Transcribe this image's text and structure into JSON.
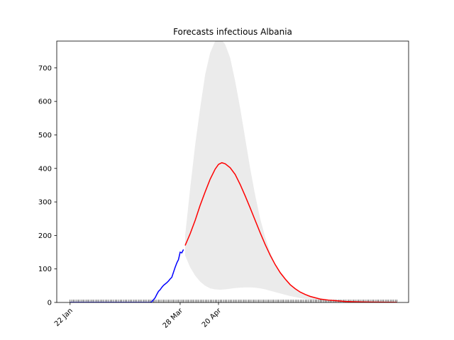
{
  "chart_data": {
    "type": "line",
    "title": "Forecasts infectious Albania",
    "xlabel": "",
    "ylabel": "",
    "ylim": [
      0,
      780
    ],
    "yticks": [
      0,
      100,
      200,
      300,
      400,
      500,
      600,
      700
    ],
    "x_tick_labels": [
      "22 Jan",
      "28 Mar",
      "20 Apr"
    ],
    "x_tick_days": [
      0,
      66,
      89
    ],
    "x_range_days": [
      -8,
      203
    ],
    "minor_ticks_days": [
      0,
      196
    ],
    "colors": {
      "observed": "#0000ff",
      "forecast": "#ff0000",
      "band": "#ebebeb"
    },
    "series": [
      {
        "role": "observed",
        "points": [
          [
            0,
            0
          ],
          [
            10,
            0
          ],
          [
            20,
            0
          ],
          [
            30,
            0
          ],
          [
            40,
            0
          ],
          [
            48,
            0
          ],
          [
            49,
            2
          ],
          [
            50,
            8
          ],
          [
            51,
            14
          ],
          [
            52,
            24
          ],
          [
            53,
            33
          ],
          [
            54,
            38
          ],
          [
            55,
            45
          ],
          [
            56,
            51
          ],
          [
            57,
            55
          ],
          [
            58,
            59
          ],
          [
            59,
            64
          ],
          [
            60,
            70
          ],
          [
            61,
            75
          ],
          [
            62,
            90
          ],
          [
            63,
            105
          ],
          [
            64,
            118
          ],
          [
            65,
            128
          ],
          [
            66,
            150
          ],
          [
            67,
            148
          ],
          [
            68,
            158
          ]
        ]
      },
      {
        "role": "forecast",
        "points": [
          [
            69,
            170
          ],
          [
            72,
            205
          ],
          [
            75,
            245
          ],
          [
            78,
            290
          ],
          [
            81,
            330
          ],
          [
            84,
            368
          ],
          [
            87,
            398
          ],
          [
            89,
            412
          ],
          [
            91,
            417
          ],
          [
            93,
            414
          ],
          [
            96,
            402
          ],
          [
            99,
            382
          ],
          [
            102,
            352
          ],
          [
            105,
            318
          ],
          [
            108,
            282
          ],
          [
            111,
            245
          ],
          [
            114,
            208
          ],
          [
            117,
            173
          ],
          [
            120,
            141
          ],
          [
            123,
            113
          ],
          [
            126,
            89
          ],
          [
            129,
            70
          ],
          [
            132,
            53
          ],
          [
            135,
            41
          ],
          [
            138,
            31
          ],
          [
            141,
            24
          ],
          [
            144,
            18
          ],
          [
            147,
            14
          ],
          [
            150,
            10
          ],
          [
            155,
            7
          ],
          [
            160,
            5
          ],
          [
            165,
            3
          ],
          [
            170,
            2
          ],
          [
            180,
            1
          ],
          [
            190,
            0.5
          ],
          [
            196,
            0.3
          ]
        ]
      }
    ],
    "band": {
      "upper": [
        [
          69,
          200
        ],
        [
          72,
          340
        ],
        [
          75,
          470
        ],
        [
          78,
          580
        ],
        [
          81,
          680
        ],
        [
          84,
          745
        ],
        [
          87,
          780
        ],
        [
          90,
          790
        ],
        [
          93,
          770
        ],
        [
          96,
          730
        ],
        [
          99,
          660
        ],
        [
          102,
          580
        ],
        [
          105,
          490
        ],
        [
          108,
          400
        ],
        [
          111,
          320
        ],
        [
          114,
          250
        ],
        [
          117,
          195
        ],
        [
          120,
          150
        ],
        [
          123,
          115
        ],
        [
          126,
          88
        ],
        [
          129,
          68
        ],
        [
          132,
          52
        ],
        [
          135,
          40
        ],
        [
          138,
          31
        ],
        [
          141,
          25
        ],
        [
          144,
          20
        ],
        [
          147,
          16
        ],
        [
          150,
          13
        ],
        [
          155,
          9
        ],
        [
          160,
          6
        ],
        [
          165,
          4
        ],
        [
          170,
          3
        ],
        [
          180,
          2
        ],
        [
          190,
          1
        ],
        [
          196,
          0.5
        ]
      ],
      "lower": [
        [
          69,
          140
        ],
        [
          72,
          105
        ],
        [
          75,
          80
        ],
        [
          78,
          62
        ],
        [
          81,
          50
        ],
        [
          84,
          42
        ],
        [
          87,
          39
        ],
        [
          90,
          38
        ],
        [
          93,
          39
        ],
        [
          96,
          41
        ],
        [
          99,
          43
        ],
        [
          102,
          44
        ],
        [
          105,
          45
        ],
        [
          108,
          45
        ],
        [
          111,
          44
        ],
        [
          114,
          42
        ],
        [
          117,
          39
        ],
        [
          120,
          35
        ],
        [
          123,
          31
        ],
        [
          126,
          27
        ],
        [
          129,
          23
        ],
        [
          132,
          19
        ],
        [
          135,
          16
        ],
        [
          138,
          13
        ],
        [
          141,
          10
        ],
        [
          144,
          8
        ],
        [
          147,
          6
        ],
        [
          150,
          5
        ],
        [
          155,
          3
        ],
        [
          160,
          2
        ],
        [
          165,
          1.5
        ],
        [
          170,
          1
        ],
        [
          180,
          0.5
        ],
        [
          190,
          0.3
        ],
        [
          196,
          0.2
        ]
      ]
    }
  }
}
